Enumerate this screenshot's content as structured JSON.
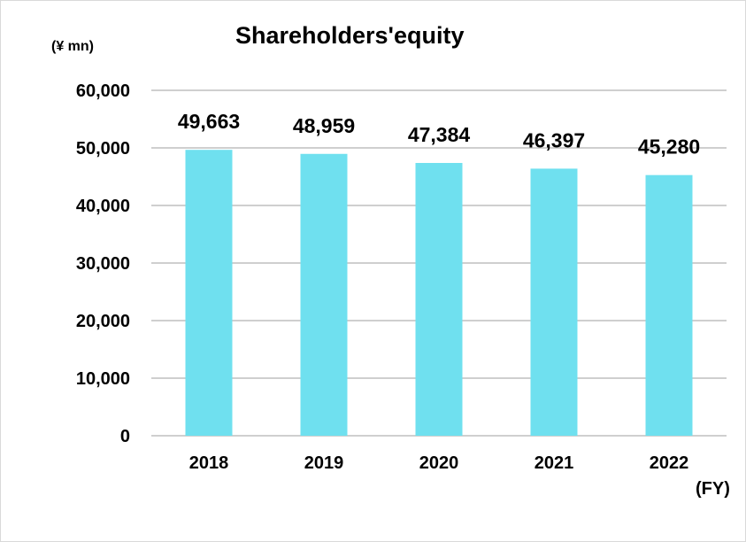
{
  "chart_data": {
    "type": "bar",
    "title": "Shareholders'equity",
    "ylabel": "(¥ mn)",
    "xlabel": "(FY)",
    "categories": [
      "2018",
      "2019",
      "2020",
      "2021",
      "2022"
    ],
    "values": [
      49663,
      48959,
      47384,
      46397,
      45280
    ],
    "data_labels": [
      "49,663",
      "48,959",
      "47,384",
      "46,397",
      "45,280"
    ],
    "ylim": [
      0,
      60000
    ],
    "yticks": [
      0,
      10000,
      20000,
      30000,
      40000,
      50000,
      60000
    ],
    "ytick_labels": [
      "0",
      "10,000",
      "20,000",
      "30,000",
      "40,000",
      "50,000",
      "60,000"
    ],
    "grid": true,
    "legend": "none",
    "bar_color": "#6fe0ef",
    "grid_color": "#bfbfbf"
  }
}
